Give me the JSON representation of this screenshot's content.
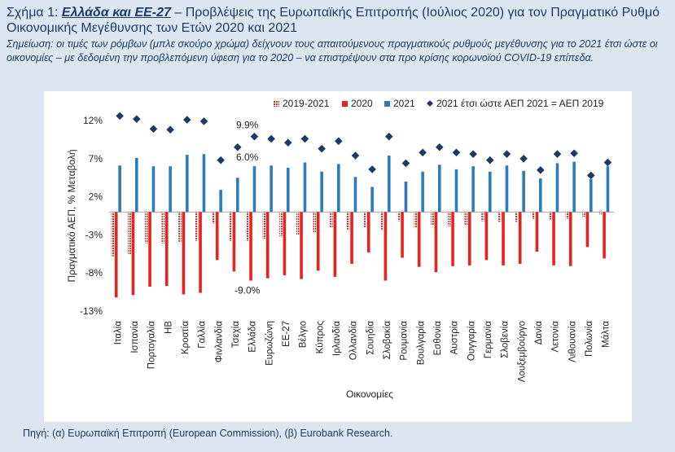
{
  "header": {
    "title_prefix": "Σχήμα 1: ",
    "title_bold": "Ελλάδα και ΕΕ-27",
    "title_rest": " – Προβλέψεις της Ευρωπαϊκής Επιτροπής (Ιούλιος 2020) για τον Πραγματικό Ρυθμό Οικονομικής Μεγέθυνσης των Ετών 2020 και 2021",
    "note": "Σημείωση: οι τιμές των ρόμβων (μπλε σκούρο χρώμα) δείχνουν τους απαιτούμενους πραγματικούς ρυθμούς μεγέθυνσης για το 2021 έτσι ώστε οι οικονομίες – με δεδομένη την προβλεπόμενη ύφεση για το 2020 – να επιστρέψουν στα προ κρίσης κορωνοϊού COVID-19 επίπεδα.",
    "source": "Πηγή: (α) Ευρωπαϊκή Επιτροπή (European Commission), (β) Eurobank Research."
  },
  "colors": {
    "s2019_2021": "#c0392b",
    "s2020": "#e8231f",
    "s2021": "#2b7bbd",
    "diamond": "#1f3864",
    "text": "#1f3b66"
  },
  "chart_data": {
    "type": "bar",
    "xlabel": "Οικονομίες",
    "ylabel": "Πραγματικό ΑΕΠ, % Μεταβολή",
    "ylim": [
      -13,
      12
    ],
    "yticks": [
      12,
      7,
      2,
      -3,
      -8,
      -13
    ],
    "ytick_labels": [
      "12%",
      "7%",
      "2%",
      "-3%",
      "-8%",
      "-13%"
    ],
    "legend": [
      "2019-2021",
      "2020",
      "2021",
      "2021 έτσι ώστε ΑΕΠ 2021 = ΑΕΠ 2019"
    ],
    "legend_position": "top-right",
    "categories": [
      "Ιταλία",
      "Ισπανία",
      "Πορτογαλία",
      "ΗΒ",
      "Κροατία",
      "Γαλλία",
      "Φινλανδία",
      "Τσεχία",
      "Ελλάδα",
      "Ευρωζώνη",
      "ΕΕ-27",
      "Βέλγιο",
      "Κύπρος",
      "Ιρλανδία",
      "Ολλανδία",
      "Σουηδία",
      "Σλοβακία",
      "Ρουμανία",
      "Βουλγαρία",
      "Εσθονία",
      "Αυστρία",
      "Ουγγαρία",
      "Γερμανία",
      "Σλοβενία",
      "Λουξεμβούργο",
      "Δανία",
      "Λετονία",
      "Λιθουανία",
      "Πολωνία",
      "Μάλτα"
    ],
    "series": [
      {
        "name": "2019-2021",
        "values": [
          -5.8,
          -5.6,
          -4.1,
          -4.1,
          -3.9,
          -3.8,
          -1.5,
          -3.8,
          -3.8,
          -3.5,
          -3.2,
          -3.0,
          -2.7,
          -2.1,
          -2.3,
          -2.1,
          -2.3,
          -1.2,
          -2.1,
          -1.7,
          -1.9,
          -1.7,
          -1.2,
          -1.3,
          -1.3,
          -0.9,
          -1.0,
          -0.9,
          -0.6,
          -0.3
        ]
      },
      {
        "name": "2020",
        "values": [
          -11.2,
          -10.9,
          -9.8,
          -9.7,
          -10.8,
          -10.6,
          -6.3,
          -7.8,
          -9.0,
          -8.7,
          -8.3,
          -8.8,
          -7.7,
          -8.5,
          -6.8,
          -5.3,
          -9.0,
          -6.0,
          -7.2,
          -7.9,
          -7.1,
          -7.0,
          -6.3,
          -7.0,
          -6.8,
          -5.2,
          -7.0,
          -7.1,
          -4.6,
          -6.1
        ]
      },
      {
        "name": "2021",
        "values": [
          6.1,
          7.1,
          6.0,
          6.0,
          7.5,
          7.6,
          2.9,
          4.5,
          6.0,
          6.1,
          5.8,
          6.5,
          5.3,
          6.3,
          4.6,
          3.3,
          7.4,
          4.0,
          5.3,
          6.2,
          5.6,
          6.0,
          5.3,
          6.1,
          5.4,
          4.4,
          6.4,
          6.6,
          4.3,
          6.0
        ]
      },
      {
        "name": "2021 έτσι ώστε ΑΕΠ 2021 = ΑΕΠ 2019",
        "values": [
          12.6,
          12.2,
          10.9,
          10.8,
          12.1,
          11.9,
          6.8,
          8.5,
          9.9,
          9.6,
          9.1,
          9.6,
          8.3,
          9.3,
          7.4,
          5.6,
          9.9,
          6.4,
          7.8,
          8.5,
          7.8,
          7.6,
          6.8,
          7.6,
          7.0,
          5.5,
          7.6,
          7.7,
          4.8,
          6.5
        ]
      }
    ],
    "annotations": [
      {
        "category": "Ελλάδα",
        "text": "9.9%",
        "series": "2021 έτσι ώστε ΑΕΠ 2021 = ΑΕΠ 2019"
      },
      {
        "category": "Ελλάδα",
        "text": "6.0%",
        "series": "2021"
      },
      {
        "category": "Ελλάδα",
        "text": "-9.0%",
        "series": "2020"
      }
    ]
  }
}
